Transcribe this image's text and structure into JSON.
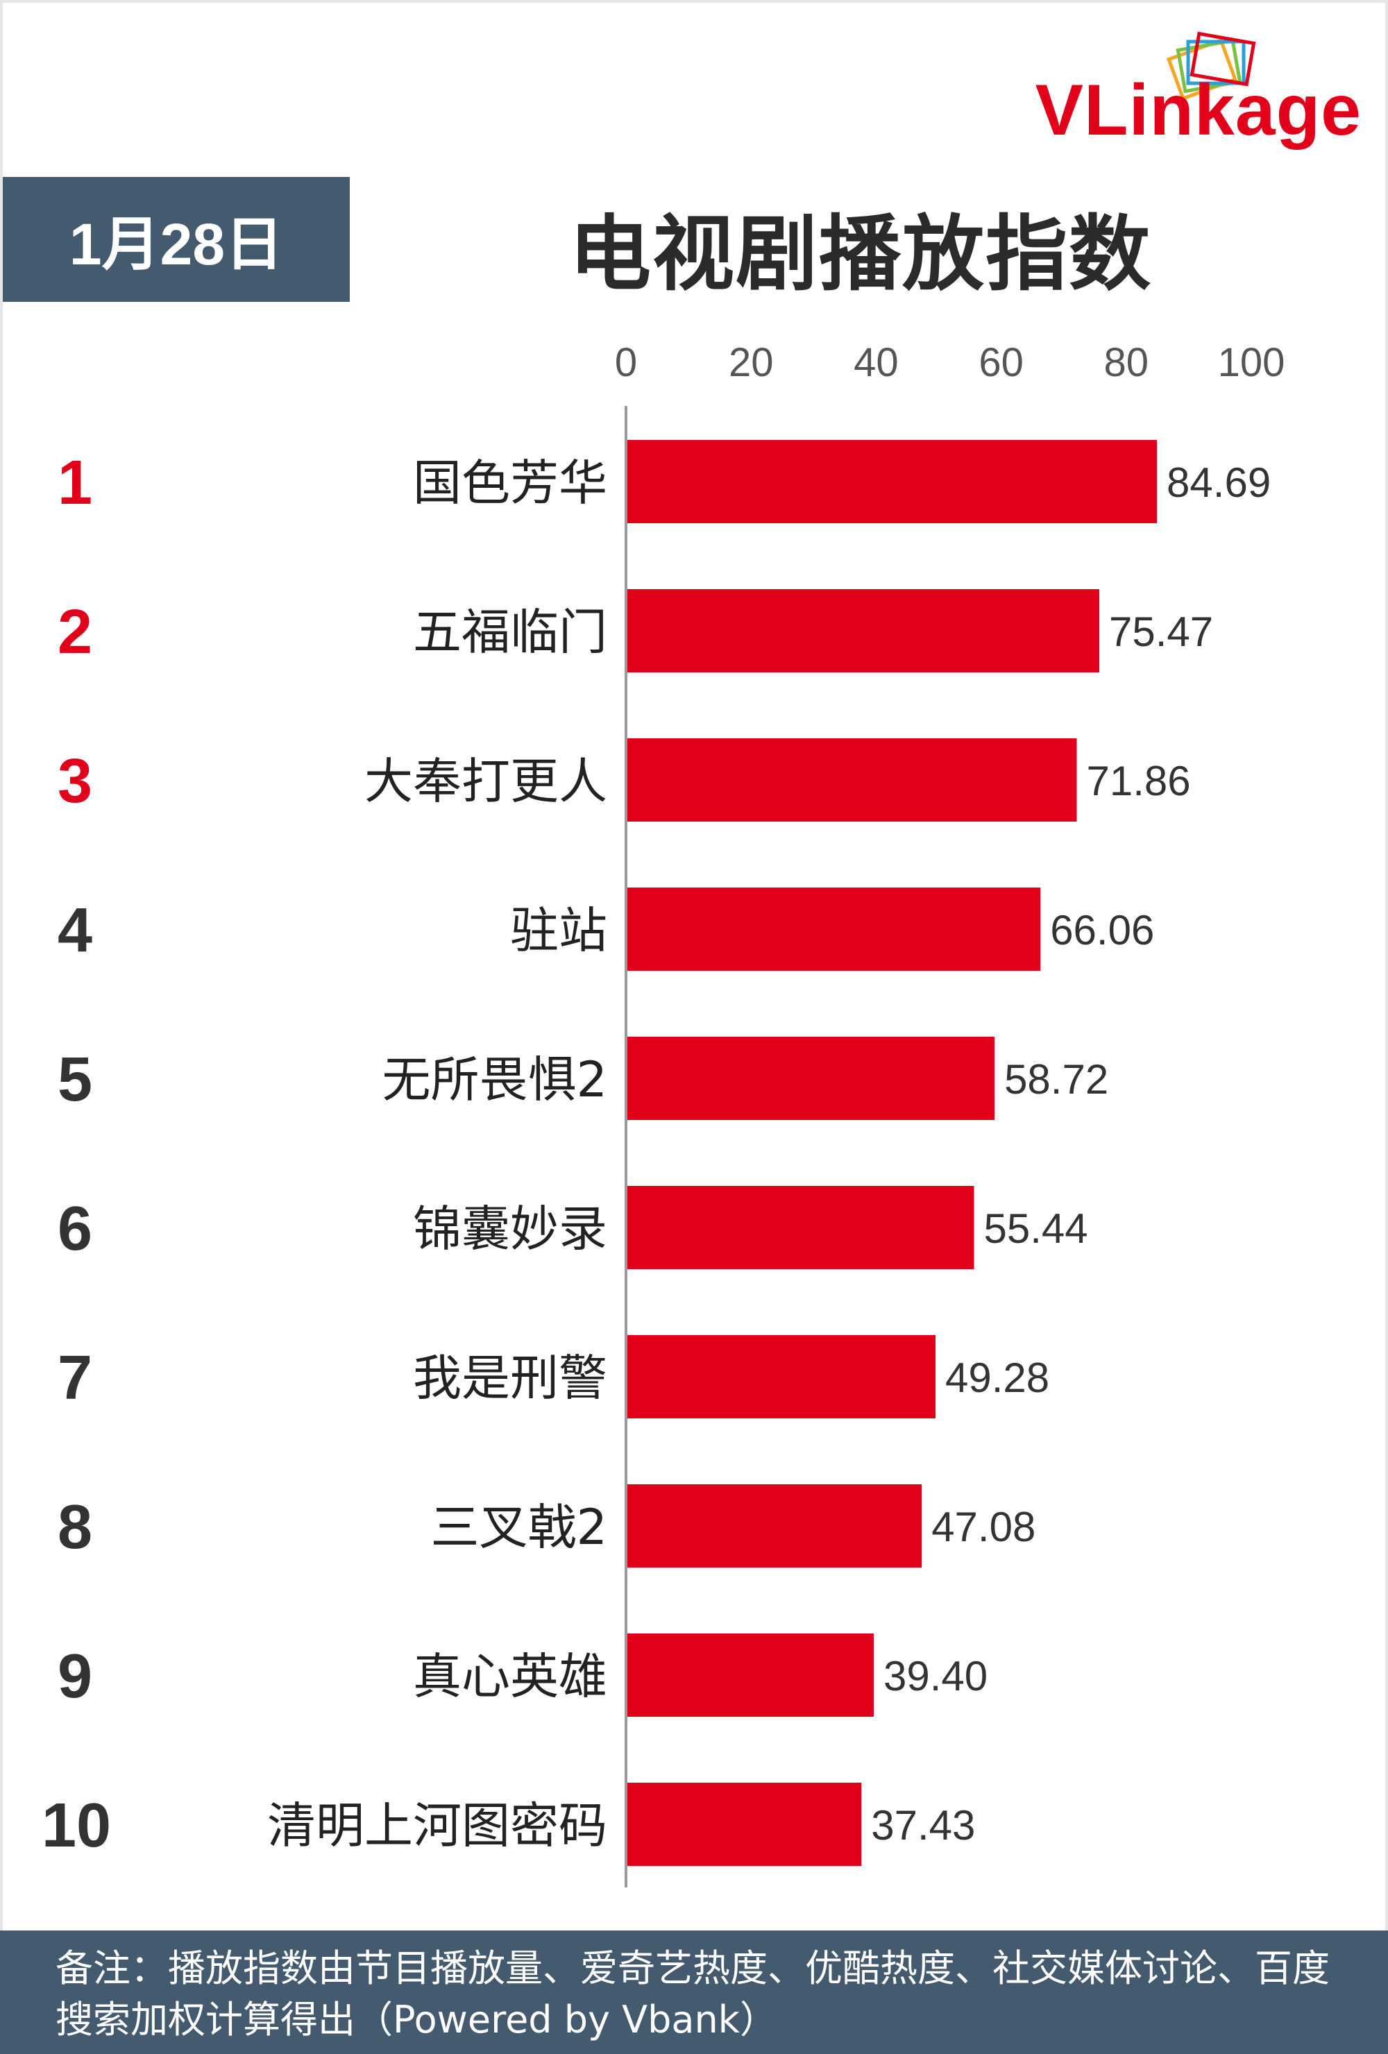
{
  "header": {
    "logo": "VLinkage",
    "date": "1月28日",
    "title": "电视剧播放指数"
  },
  "footer": {
    "note": "备注：播放指数由节目播放量、爱奇艺热度、优酷热度、社交媒体讨论、百度搜索加权计算得出（Powered by Vbank）"
  },
  "colors": {
    "bar": "#e3001b",
    "top_rank": "#e3001b",
    "rank": "#333333",
    "badge": "#445a6e"
  },
  "chart_data": {
    "type": "bar",
    "orientation": "horizontal",
    "xlim": [
      0,
      100
    ],
    "xticks": [
      "0",
      "20",
      "40",
      "60",
      "80",
      "100"
    ],
    "ranks": [
      "1",
      "2",
      "3",
      "4",
      "5",
      "6",
      "7",
      "8",
      "9",
      "10"
    ],
    "categories": [
      "国色芳华",
      "五福临门",
      "大奉打更人",
      "驻站",
      "无所畏惧2",
      "锦囊妙录",
      "我是刑警",
      "三叉戟2",
      "真心英雄",
      "清明上河图密码"
    ],
    "values": [
      84.69,
      75.47,
      71.86,
      66.06,
      58.72,
      55.44,
      49.28,
      47.08,
      39.4,
      37.43
    ],
    "value_labels": [
      "84.69",
      "75.47",
      "71.86",
      "66.06",
      "58.72",
      "55.44",
      "49.28",
      "47.08",
      "39.40",
      "37.43"
    ],
    "grid": false
  }
}
